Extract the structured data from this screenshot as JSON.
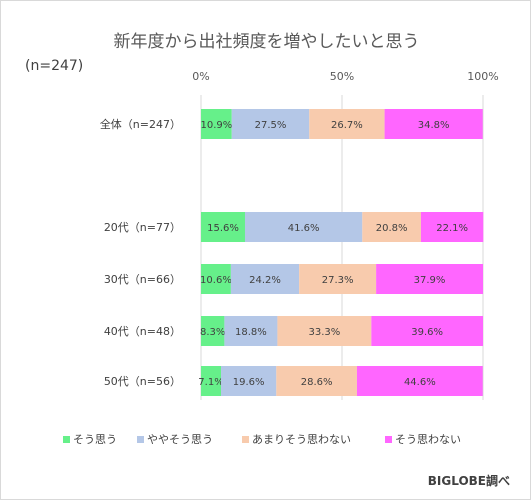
{
  "title": "新年度から出社頻度を増やしたいと思う",
  "sample_note": "(n=247)",
  "source": "BIGLOBE調べ",
  "chart_data": {
    "type": "bar",
    "orientation": "horizontal",
    "stacked": "percent",
    "title": "新年度から出社頻度を増やしたいと思う",
    "categories": [
      "全体（n=247）",
      "20代（n=77）",
      "30代（n=66）",
      "40代（n=48）",
      "50代（n=56）"
    ],
    "x_ticks": [
      "0%",
      "50%",
      "100%"
    ],
    "xlim": [
      0,
      100
    ],
    "grid": "vertical",
    "legend_position": "bottom",
    "series": [
      {
        "name": "そう思う",
        "color": "#66f08a",
        "values": [
          10.9,
          15.6,
          10.6,
          8.3,
          7.1
        ],
        "labels": [
          "10.9%",
          "15.6%",
          "10.6%",
          "8.3%",
          "7.1%"
        ]
      },
      {
        "name": "ややそう思う",
        "color": "#b4c7e7",
        "values": [
          27.5,
          41.6,
          24.2,
          18.8,
          19.6
        ],
        "labels": [
          "27.5%",
          "41.6%",
          "24.2%",
          "18.8%",
          "19.6%"
        ]
      },
      {
        "name": "あまりそう思わない",
        "color": "#f8cbad",
        "values": [
          26.7,
          20.8,
          27.3,
          33.3,
          28.6
        ],
        "labels": [
          "26.7%",
          "20.8%",
          "27.3%",
          "33.3%",
          "28.6%"
        ]
      },
      {
        "name": "そう思わない",
        "color": "#ff66ff",
        "values": [
          34.8,
          22.1,
          37.9,
          39.6,
          44.6
        ],
        "labels": [
          "34.8%",
          "22.1%",
          "37.9%",
          "39.6%",
          "44.6%"
        ]
      }
    ]
  }
}
